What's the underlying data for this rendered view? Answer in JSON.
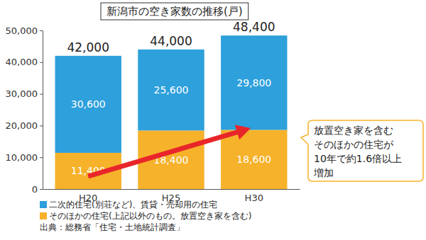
{
  "chart_data": {
    "type": "bar",
    "title": "新潟市の空き家数の推移(戸)",
    "stacked": true,
    "data_labels": true,
    "grid": false,
    "legend": "bottom-left",
    "categories": [
      "H20",
      "H25",
      "H30"
    ],
    "series": [
      {
        "name": "二次的住宅(別荘など)、賃貸・売却用の住宅",
        "color": "#2ea0db",
        "values": [
          30600,
          25600,
          29800
        ],
        "value_labels": [
          "30,600",
          "25,600",
          "29,800"
        ]
      },
      {
        "name": "そのほかの住宅(上記以外のもの。放置空き家を含む)",
        "color": "#f6b22a",
        "values": [
          11400,
          18400,
          18600
        ],
        "value_labels": [
          "11,400",
          "18,400",
          "18,600"
        ]
      }
    ],
    "totals": [
      42000,
      44000,
      48400
    ],
    "total_labels": [
      "42,000",
      "44,000",
      "48,400"
    ],
    "ylim": [
      0,
      50000
    ],
    "yticks": [
      0,
      {
        "value": 10000,
        "label": "10,000"
      },
      {
        "value": 20000,
        "label": "20,000"
      },
      {
        "value": 30000,
        "label": "30,000"
      },
      {
        "value": 40000,
        "label": "40,000"
      },
      {
        "value": 50000,
        "label": "50,000"
      }
    ],
    "annotation": [
      "放置空き家を含む",
      "そのほかの住宅が",
      "10年で約1.6倍以上",
      "増加"
    ],
    "source": "出典：総務省「住宅・土地統計調査」"
  }
}
